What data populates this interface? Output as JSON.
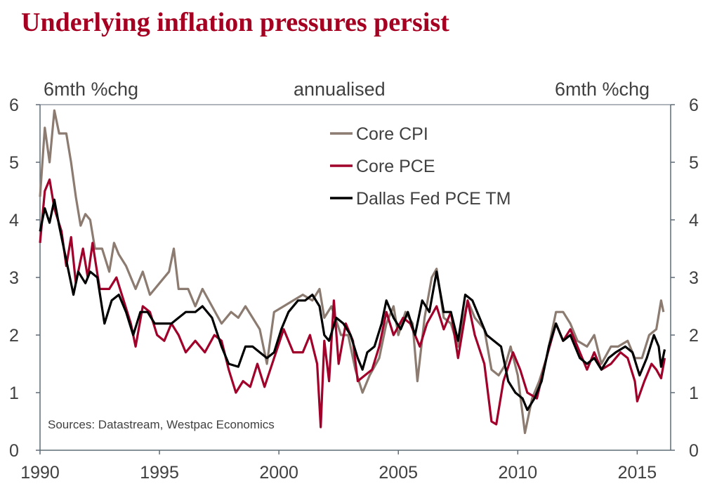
{
  "chart_data": {
    "type": "line",
    "title": "Underlying inflation pressures persist",
    "left_axis_label": "6mth %chg",
    "center_label": "annualised",
    "right_axis_label": "6mth %chg",
    "source": "Sources: Datastream, Westpac Economics",
    "xlim": [
      1990,
      2016.4
    ],
    "ylim": [
      0,
      6
    ],
    "x_ticks": [
      1990,
      1995,
      2000,
      2005,
      2010,
      2015
    ],
    "y_ticks": [
      0,
      1,
      2,
      3,
      4,
      5,
      6
    ],
    "legend_position": "top-center",
    "series": [
      {
        "name": "Core CPI",
        "color": "#8C7B70",
        "points": [
          [
            1990.0,
            4.4
          ],
          [
            1990.2,
            5.6
          ],
          [
            1990.4,
            5.0
          ],
          [
            1990.6,
            5.9
          ],
          [
            1990.8,
            5.5
          ],
          [
            1991.1,
            5.5
          ],
          [
            1991.3,
            5.0
          ],
          [
            1991.5,
            4.4
          ],
          [
            1991.7,
            3.9
          ],
          [
            1991.9,
            4.1
          ],
          [
            1992.1,
            4.0
          ],
          [
            1992.3,
            3.5
          ],
          [
            1992.6,
            3.5
          ],
          [
            1992.9,
            3.1
          ],
          [
            1993.1,
            3.6
          ],
          [
            1993.3,
            3.4
          ],
          [
            1993.6,
            3.2
          ],
          [
            1994.0,
            2.8
          ],
          [
            1994.3,
            3.1
          ],
          [
            1994.6,
            2.7
          ],
          [
            1995.0,
            2.9
          ],
          [
            1995.4,
            3.1
          ],
          [
            1995.6,
            3.5
          ],
          [
            1995.8,
            2.8
          ],
          [
            1996.2,
            2.8
          ],
          [
            1996.5,
            2.5
          ],
          [
            1996.8,
            2.8
          ],
          [
            1997.2,
            2.5
          ],
          [
            1997.6,
            2.2
          ],
          [
            1998.0,
            2.4
          ],
          [
            1998.3,
            2.3
          ],
          [
            1998.6,
            2.5
          ],
          [
            1998.9,
            2.3
          ],
          [
            1999.2,
            2.1
          ],
          [
            1999.5,
            1.5
          ],
          [
            1999.8,
            2.4
          ],
          [
            2000.2,
            2.5
          ],
          [
            2000.6,
            2.6
          ],
          [
            2001.0,
            2.7
          ],
          [
            2001.4,
            2.6
          ],
          [
            2001.7,
            2.8
          ],
          [
            2001.9,
            2.3
          ],
          [
            2002.2,
            2.5
          ],
          [
            2002.6,
            2.0
          ],
          [
            2002.9,
            2.0
          ],
          [
            2003.2,
            1.4
          ],
          [
            2003.5,
            1.0
          ],
          [
            2003.8,
            1.3
          ],
          [
            2004.2,
            1.6
          ],
          [
            2004.5,
            2.2
          ],
          [
            2004.8,
            2.5
          ],
          [
            2005.0,
            2.0
          ],
          [
            2005.3,
            2.4
          ],
          [
            2005.6,
            2.2
          ],
          [
            2005.8,
            1.2
          ],
          [
            2006.1,
            2.3
          ],
          [
            2006.4,
            3.0
          ],
          [
            2006.6,
            3.15
          ],
          [
            2006.9,
            2.3
          ],
          [
            2007.2,
            2.2
          ],
          [
            2007.5,
            1.8
          ],
          [
            2007.9,
            2.6
          ],
          [
            2008.2,
            2.3
          ],
          [
            2008.6,
            2.1
          ],
          [
            2008.9,
            1.4
          ],
          [
            2009.2,
            1.3
          ],
          [
            2009.5,
            1.5
          ],
          [
            2009.7,
            1.8
          ],
          [
            2010.0,
            1.3
          ],
          [
            2010.3,
            0.3
          ],
          [
            2010.6,
            0.9
          ],
          [
            2010.9,
            1.2
          ],
          [
            2011.2,
            1.6
          ],
          [
            2011.6,
            2.4
          ],
          [
            2011.9,
            2.4
          ],
          [
            2012.2,
            2.2
          ],
          [
            2012.5,
            1.9
          ],
          [
            2012.9,
            1.8
          ],
          [
            2013.2,
            2.0
          ],
          [
            2013.5,
            1.5
          ],
          [
            2013.9,
            1.8
          ],
          [
            2014.2,
            1.8
          ],
          [
            2014.6,
            1.9
          ],
          [
            2014.9,
            1.6
          ],
          [
            2015.2,
            1.6
          ],
          [
            2015.5,
            2.0
          ],
          [
            2015.8,
            2.1
          ],
          [
            2016.0,
            2.6
          ],
          [
            2016.1,
            2.4
          ]
        ]
      },
      {
        "name": "Core PCE",
        "color": "#A0002A",
        "points": [
          [
            1990.0,
            3.6
          ],
          [
            1990.2,
            4.5
          ],
          [
            1990.4,
            4.7
          ],
          [
            1990.6,
            4.2
          ],
          [
            1990.9,
            3.8
          ],
          [
            1991.1,
            3.2
          ],
          [
            1991.3,
            3.7
          ],
          [
            1991.5,
            2.9
          ],
          [
            1991.8,
            3.5
          ],
          [
            1992.0,
            3.0
          ],
          [
            1992.2,
            3.6
          ],
          [
            1992.5,
            2.8
          ],
          [
            1992.9,
            2.8
          ],
          [
            1993.2,
            3.0
          ],
          [
            1993.5,
            2.6
          ],
          [
            1993.8,
            2.2
          ],
          [
            1994.0,
            1.8
          ],
          [
            1994.3,
            2.5
          ],
          [
            1994.6,
            2.4
          ],
          [
            1994.9,
            2.0
          ],
          [
            1995.2,
            1.9
          ],
          [
            1995.5,
            2.2
          ],
          [
            1995.8,
            2.0
          ],
          [
            1996.1,
            1.7
          ],
          [
            1996.5,
            1.9
          ],
          [
            1996.9,
            1.7
          ],
          [
            1997.3,
            2.0
          ],
          [
            1997.6,
            1.9
          ],
          [
            1997.9,
            1.4
          ],
          [
            1998.2,
            1.0
          ],
          [
            1998.5,
            1.2
          ],
          [
            1998.8,
            1.1
          ],
          [
            1999.1,
            1.5
          ],
          [
            1999.4,
            1.1
          ],
          [
            1999.8,
            1.6
          ],
          [
            2000.2,
            2.1
          ],
          [
            2000.6,
            1.7
          ],
          [
            2001.0,
            1.7
          ],
          [
            2001.3,
            2.0
          ],
          [
            2001.6,
            1.5
          ],
          [
            2001.75,
            0.4
          ],
          [
            2001.9,
            1.9
          ],
          [
            2002.1,
            1.2
          ],
          [
            2002.3,
            2.6
          ],
          [
            2002.5,
            1.5
          ],
          [
            2002.8,
            2.2
          ],
          [
            2003.1,
            1.9
          ],
          [
            2003.3,
            1.2
          ],
          [
            2003.6,
            1.3
          ],
          [
            2003.9,
            1.4
          ],
          [
            2004.2,
            1.8
          ],
          [
            2004.5,
            2.4
          ],
          [
            2004.8,
            2.0
          ],
          [
            2005.2,
            2.3
          ],
          [
            2005.5,
            2.2
          ],
          [
            2005.9,
            1.8
          ],
          [
            2006.2,
            2.2
          ],
          [
            2006.6,
            2.5
          ],
          [
            2006.9,
            2.1
          ],
          [
            2007.2,
            2.4
          ],
          [
            2007.5,
            1.6
          ],
          [
            2007.9,
            2.6
          ],
          [
            2008.2,
            2.0
          ],
          [
            2008.6,
            1.5
          ],
          [
            2008.9,
            0.5
          ],
          [
            2009.1,
            0.45
          ],
          [
            2009.4,
            1.2
          ],
          [
            2009.8,
            1.7
          ],
          [
            2010.1,
            1.4
          ],
          [
            2010.4,
            1.0
          ],
          [
            2010.8,
            0.9
          ],
          [
            2011.2,
            1.6
          ],
          [
            2011.6,
            2.2
          ],
          [
            2011.9,
            1.9
          ],
          [
            2012.2,
            2.1
          ],
          [
            2012.6,
            1.7
          ],
          [
            2012.9,
            1.4
          ],
          [
            2013.2,
            1.7
          ],
          [
            2013.5,
            1.4
          ],
          [
            2013.9,
            1.5
          ],
          [
            2014.3,
            1.7
          ],
          [
            2014.6,
            1.6
          ],
          [
            2014.9,
            1.2
          ],
          [
            2015.0,
            0.85
          ],
          [
            2015.3,
            1.2
          ],
          [
            2015.6,
            1.5
          ],
          [
            2015.8,
            1.4
          ],
          [
            2016.0,
            1.25
          ],
          [
            2016.15,
            1.6
          ]
        ]
      },
      {
        "name": "Dallas Fed PCE TM",
        "color": "#000000",
        "points": [
          [
            1990.0,
            3.8
          ],
          [
            1990.2,
            4.2
          ],
          [
            1990.4,
            3.95
          ],
          [
            1990.6,
            4.35
          ],
          [
            1990.8,
            3.9
          ],
          [
            1991.1,
            3.3
          ],
          [
            1991.4,
            2.7
          ],
          [
            1991.6,
            3.1
          ],
          [
            1991.9,
            2.9
          ],
          [
            1992.1,
            3.1
          ],
          [
            1992.4,
            3.0
          ],
          [
            1992.7,
            2.2
          ],
          [
            1993.0,
            2.6
          ],
          [
            1993.3,
            2.7
          ],
          [
            1993.6,
            2.4
          ],
          [
            1993.9,
            2.0
          ],
          [
            1994.2,
            2.4
          ],
          [
            1994.5,
            2.4
          ],
          [
            1994.8,
            2.2
          ],
          [
            1995.1,
            2.2
          ],
          [
            1995.5,
            2.2
          ],
          [
            1995.8,
            2.3
          ],
          [
            1996.1,
            2.4
          ],
          [
            1996.5,
            2.4
          ],
          [
            1996.8,
            2.5
          ],
          [
            1997.2,
            2.3
          ],
          [
            1997.6,
            1.8
          ],
          [
            1997.9,
            1.5
          ],
          [
            1998.3,
            1.45
          ],
          [
            1998.6,
            1.8
          ],
          [
            1998.9,
            1.8
          ],
          [
            1999.2,
            1.7
          ],
          [
            1999.5,
            1.6
          ],
          [
            1999.8,
            1.7
          ],
          [
            2000.1,
            2.1
          ],
          [
            2000.4,
            2.4
          ],
          [
            2000.8,
            2.6
          ],
          [
            2001.1,
            2.6
          ],
          [
            2001.4,
            2.7
          ],
          [
            2001.7,
            2.5
          ],
          [
            2001.9,
            2.0
          ],
          [
            2002.1,
            1.9
          ],
          [
            2002.4,
            2.3
          ],
          [
            2002.7,
            2.2
          ],
          [
            2003.0,
            2.0
          ],
          [
            2003.3,
            1.6
          ],
          [
            2003.5,
            1.4
          ],
          [
            2003.7,
            1.7
          ],
          [
            2004.0,
            1.8
          ],
          [
            2004.3,
            2.2
          ],
          [
            2004.5,
            2.6
          ],
          [
            2004.8,
            2.3
          ],
          [
            2005.1,
            2.1
          ],
          [
            2005.4,
            2.4
          ],
          [
            2005.7,
            2.0
          ],
          [
            2006.0,
            2.6
          ],
          [
            2006.3,
            2.4
          ],
          [
            2006.6,
            3.1
          ],
          [
            2006.9,
            2.4
          ],
          [
            2007.2,
            2.4
          ],
          [
            2007.5,
            1.9
          ],
          [
            2007.8,
            2.7
          ],
          [
            2008.1,
            2.6
          ],
          [
            2008.4,
            2.3
          ],
          [
            2008.7,
            2.0
          ],
          [
            2009.0,
            1.9
          ],
          [
            2009.3,
            1.8
          ],
          [
            2009.6,
            1.2
          ],
          [
            2009.9,
            1.0
          ],
          [
            2010.2,
            0.9
          ],
          [
            2010.4,
            0.7
          ],
          [
            2010.7,
            0.9
          ],
          [
            2011.0,
            1.2
          ],
          [
            2011.3,
            1.8
          ],
          [
            2011.6,
            2.2
          ],
          [
            2011.9,
            1.9
          ],
          [
            2012.2,
            2.0
          ],
          [
            2012.6,
            1.6
          ],
          [
            2012.9,
            1.5
          ],
          [
            2013.2,
            1.6
          ],
          [
            2013.5,
            1.4
          ],
          [
            2013.8,
            1.6
          ],
          [
            2014.1,
            1.7
          ],
          [
            2014.5,
            1.8
          ],
          [
            2014.8,
            1.7
          ],
          [
            2015.1,
            1.3
          ],
          [
            2015.4,
            1.6
          ],
          [
            2015.7,
            2.0
          ],
          [
            2015.9,
            1.8
          ],
          [
            2016.0,
            1.45
          ],
          [
            2016.15,
            1.75
          ]
        ]
      }
    ]
  }
}
